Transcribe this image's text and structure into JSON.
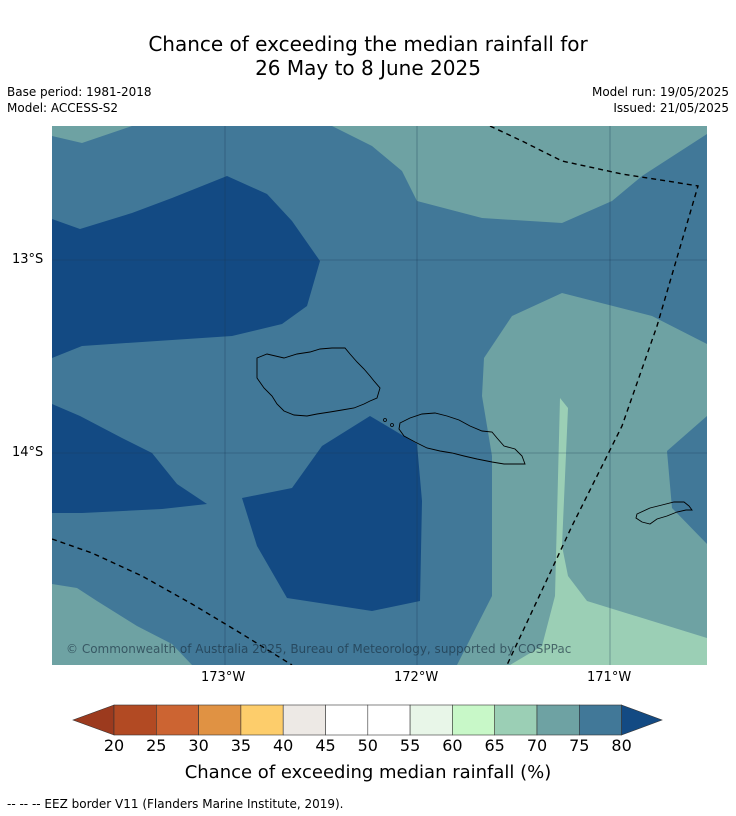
{
  "title": {
    "line1": "Chance of exceeding the median rainfall for",
    "line2": "26 May to 8 June 2025"
  },
  "meta": {
    "base_period": "Base period: 1981-2018",
    "model": "Model: ACCESS-S2",
    "model_run": "Model run: 19/05/2025",
    "issued": "Issued: 21/05/2025"
  },
  "map": {
    "attribution": "© Commonwealth of Australia 2025, Bureau of Meteorology, supported by COSPPac",
    "lon_labels": [
      "173°W",
      "172°W",
      "171°W"
    ],
    "lat_labels": [
      "13°S",
      "14°S"
    ],
    "regions": [
      "Upolu",
      "Savai'i",
      "Tutuila",
      "EEZ border"
    ]
  },
  "colorbar": {
    "ticks": [
      "20",
      "25",
      "30",
      "35",
      "40",
      "45",
      "50",
      "55",
      "60",
      "65",
      "70",
      "75",
      "80"
    ],
    "colors": [
      "#9c3a1e",
      "#b24a23",
      "#cc6432",
      "#e09243",
      "#fdcd6b",
      "#ede9e5",
      "#ffffff",
      "#ffffff",
      "#e8f6e8",
      "#c8f8c8",
      "#9bcfb5",
      "#6ea2a3",
      "#417898",
      "#134a83"
    ],
    "label": "Chance of exceeding median rainfall (%)"
  },
  "footer": "--  --  -- EEZ border V11 (Flanders Marine Institute, 2019)."
}
